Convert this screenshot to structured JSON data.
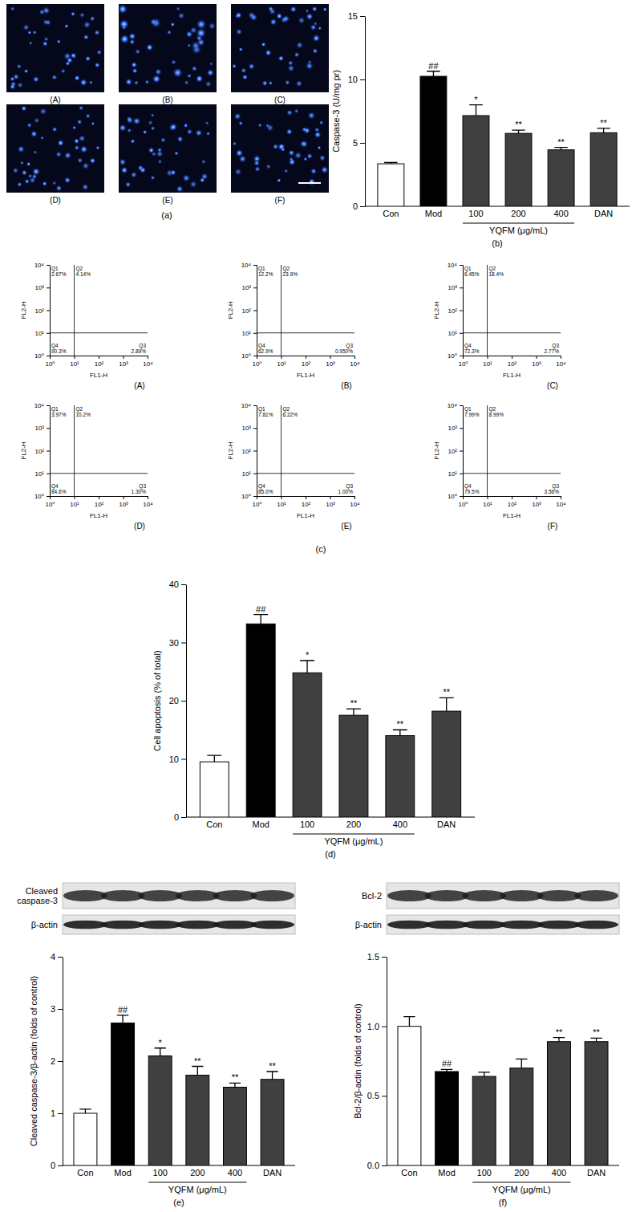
{
  "images": {
    "title": "(a)",
    "panels": [
      "(A)",
      "(B)",
      "(C)",
      "(D)",
      "(E)",
      "(F)"
    ]
  },
  "chart_data": [
    {
      "type": "bar",
      "title": "(b)",
      "y_label": "Caspase-3 (U/mg pr)",
      "categories": [
        "Con",
        "Mod",
        "100",
        "200",
        "400",
        "DAN"
      ],
      "values": [
        3.35,
        10.25,
        7.15,
        5.75,
        4.45,
        5.8
      ],
      "errors": [
        0.1,
        0.4,
        0.85,
        0.25,
        0.2,
        0.35
      ],
      "colors": [
        "#ffffff",
        "#000000",
        "#404040",
        "#404040",
        "#404040",
        "#404040"
      ],
      "annotations": [
        null,
        "##",
        "*",
        "**",
        "**",
        "**"
      ],
      "x_group": {
        "label": "YQFM (μg/mL)",
        "categories": [
          "100",
          "200",
          "400"
        ]
      },
      "ylim": [
        0,
        15
      ],
      "yticks": [
        0,
        5,
        10,
        15
      ]
    },
    {
      "type": "scatter",
      "title": "(c)",
      "x_label": "FL1-H",
      "y_label": "FL2-H",
      "log": true,
      "xlim": [
        1,
        10000
      ],
      "ylim": [
        1,
        10000
      ],
      "xticks": [
        {
          "value": 1,
          "label": "10⁰"
        },
        {
          "value": 10,
          "label": "10¹"
        },
        {
          "value": 100,
          "label": "10²"
        },
        {
          "value": 1000,
          "label": "10³"
        },
        {
          "value": 10000,
          "label": "10⁴"
        }
      ],
      "yticks": [
        {
          "value": 1,
          "label": "10⁰"
        },
        {
          "value": 10,
          "label": "10¹"
        },
        {
          "value": 100,
          "label": "10²"
        },
        {
          "value": 1000,
          "label": "10³"
        },
        {
          "value": 10000,
          "label": "10⁴"
        }
      ],
      "thresholds": {
        "x": 10,
        "y": 10
      },
      "panels": [
        {
          "label": "(A)",
          "quadrants": [
            "Q1",
            "Q2",
            "Q3",
            "Q4"
          ],
          "values": [
            2.67,
            4.14,
            2.89,
            90.3
          ],
          "value_labels": [
            "2.67%",
            "4.14%",
            "2.89%",
            "90.3%"
          ]
        },
        {
          "label": "(B)",
          "quadrants": [
            "Q1",
            "Q2",
            "Q3",
            "Q4"
          ],
          "values": [
            12.2,
            23.9,
            0.95,
            62.9
          ],
          "value_labels": [
            "12.2%",
            "23.9%",
            "0.950%",
            "62.9%"
          ]
        },
        {
          "label": "(C)",
          "quadrants": [
            "Q1",
            "Q2",
            "Q3",
            "Q4"
          ],
          "values": [
            6.45,
            18.4,
            2.77,
            72.3
          ],
          "value_labels": [
            "6.45%",
            "18.4%",
            "2.77%",
            "72.3%"
          ]
        },
        {
          "label": "(D)",
          "quadrants": [
            "Q1",
            "Q2",
            "Q3",
            "Q4"
          ],
          "values": [
            3.97,
            10.2,
            1.3,
            84.6
          ],
          "value_labels": [
            "3.97%",
            "10.2%",
            "1.30%",
            "84.6%"
          ]
        },
        {
          "label": "(E)",
          "quadrants": [
            "Q1",
            "Q2",
            "Q3",
            "Q4"
          ],
          "values": [
            7.81,
            6.22,
            1.0,
            85.0
          ],
          "value_labels": [
            "7.81%",
            "6.22%",
            "1.00%",
            "85.0%"
          ]
        },
        {
          "label": "(F)",
          "quadrants": [
            "Q1",
            "Q2",
            "Q3",
            "Q4"
          ],
          "values": [
            7.99,
            8.99,
            3.56,
            79.5
          ],
          "value_labels": [
            "7.99%",
            "8.99%",
            "3.56%",
            "79.5%"
          ]
        }
      ]
    },
    {
      "type": "bar",
      "title": "(d)",
      "y_label": "Cell apoptosis (% of total)",
      "categories": [
        "Con",
        "Mod",
        "100",
        "200",
        "400",
        "DAN"
      ],
      "values": [
        9.5,
        33.2,
        24.8,
        17.5,
        14.0,
        18.2
      ],
      "errors": [
        1.1,
        1.6,
        2.1,
        1.1,
        1.0,
        2.3
      ],
      "colors": [
        "#ffffff",
        "#000000",
        "#404040",
        "#404040",
        "#404040",
        "#404040"
      ],
      "annotations": [
        null,
        "##",
        "*",
        "**",
        "**",
        "**"
      ],
      "x_group": {
        "label": "YQFM (μg/mL)",
        "categories": [
          "100",
          "200",
          "400"
        ]
      },
      "ylim": [
        0,
        40
      ],
      "yticks": [
        0,
        10,
        20,
        30,
        40
      ]
    },
    {
      "type": "bar",
      "title": "(e)",
      "y_label": "Cleaved caspase-3/β-actin (folds of control)",
      "blot_labels": [
        "Cleaved caspase-3",
        "β-actin"
      ],
      "categories": [
        "Con",
        "Mod",
        "100",
        "200",
        "400",
        "DAN"
      ],
      "values": [
        1.0,
        2.73,
        2.1,
        1.73,
        1.5,
        1.65
      ],
      "errors": [
        0.08,
        0.15,
        0.15,
        0.17,
        0.08,
        0.15
      ],
      "colors": [
        "#ffffff",
        "#000000",
        "#404040",
        "#404040",
        "#404040",
        "#404040"
      ],
      "annotations": [
        null,
        "##",
        "*",
        "**",
        "**",
        "**"
      ],
      "x_group": {
        "label": "YQFM (μg/mL)",
        "categories": [
          "100",
          "200",
          "400"
        ]
      },
      "ylim": [
        0,
        4
      ],
      "yticks": [
        0,
        1,
        2,
        3,
        4
      ]
    },
    {
      "type": "bar",
      "title": "(f)",
      "y_label": "Bcl-2/β-actin (folds of control)",
      "blot_labels": [
        "Bcl-2",
        "β-actin"
      ],
      "categories": [
        "Con",
        "Mod",
        "100",
        "200",
        "400",
        "DAN"
      ],
      "values": [
        1.0,
        0.675,
        0.64,
        0.7,
        0.89,
        0.89
      ],
      "errors": [
        0.07,
        0.015,
        0.03,
        0.065,
        0.03,
        0.025
      ],
      "colors": [
        "#ffffff",
        "#000000",
        "#404040",
        "#404040",
        "#404040",
        "#404040"
      ],
      "annotations": [
        null,
        "##",
        null,
        null,
        "**",
        "**"
      ],
      "x_group": {
        "label": "YQFM (μg/mL)",
        "categories": [
          "100",
          "200",
          "400"
        ]
      },
      "ylim": [
        0,
        1.5
      ],
      "yticks": [
        {
          "value": 0,
          "label": "0.0"
        },
        {
          "value": 0.5,
          "label": "0.5"
        },
        {
          "value": 1,
          "label": "1.0"
        },
        {
          "value": 1.5,
          "label": "1.5"
        }
      ]
    }
  ]
}
